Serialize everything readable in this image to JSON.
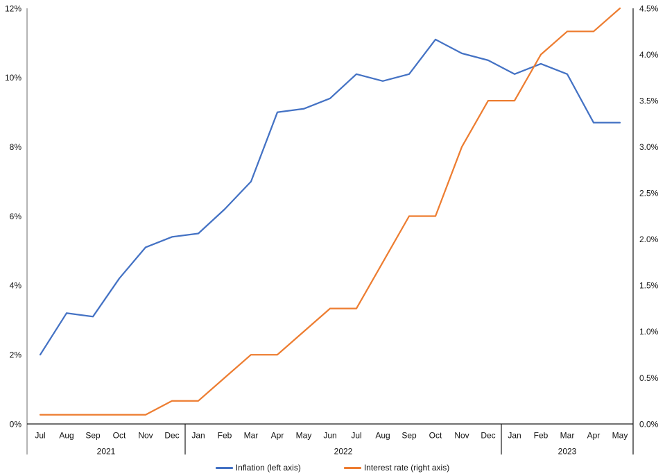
{
  "colors": {
    "inflation_line": "#4472C4",
    "interest_line": "#ED7D31",
    "left_axis_line": "#8C8C8C",
    "right_axis_line": "#262626",
    "category_axis_line": "#1A1A1A",
    "label_text": "#111111",
    "background": "#FFFFFF"
  },
  "chart_data": {
    "type": "line",
    "x": [
      "Jul",
      "Aug",
      "Sep",
      "Oct",
      "Nov",
      "Dec",
      "Jan",
      "Feb",
      "Mar",
      "Apr",
      "May",
      "Jun",
      "Jul",
      "Aug",
      "Sep",
      "Oct",
      "Nov",
      "Dec",
      "Jan",
      "Feb",
      "Mar",
      "Apr",
      "May"
    ],
    "x_groups": [
      {
        "label": "2021",
        "count": 6
      },
      {
        "label": "2022",
        "count": 12
      },
      {
        "label": "2023",
        "count": 5
      }
    ],
    "series": [
      {
        "name": "Inflation (left axis)",
        "axis": "left",
        "color": "#4472C4",
        "values": [
          2.0,
          3.2,
          3.1,
          4.2,
          5.1,
          5.4,
          5.5,
          6.2,
          7.0,
          9.0,
          9.1,
          9.4,
          10.1,
          9.9,
          10.1,
          11.1,
          10.7,
          10.5,
          10.1,
          10.4,
          10.1,
          8.7,
          8.7
        ]
      },
      {
        "name": "Interest rate (right axis)",
        "axis": "right",
        "color": "#ED7D31",
        "values": [
          0.1,
          0.1,
          0.1,
          0.1,
          0.1,
          0.25,
          0.25,
          0.5,
          0.75,
          0.75,
          1.0,
          1.25,
          1.25,
          1.75,
          2.25,
          2.25,
          3.0,
          3.5,
          3.5,
          4.0,
          4.25,
          4.25,
          4.5
        ]
      }
    ],
    "left_axis": {
      "min": 0,
      "max": 12,
      "step": 2,
      "tick_labels": [
        "0%",
        "2%",
        "4%",
        "6%",
        "8%",
        "10%",
        "12%"
      ]
    },
    "right_axis": {
      "min": 0,
      "max": 4.5,
      "step": 0.5,
      "tick_labels": [
        "0.0%",
        "0.5%",
        "1.0%",
        "1.5%",
        "2.0%",
        "2.5%",
        "3.0%",
        "3.5%",
        "4.0%",
        "4.5%"
      ]
    },
    "legend_position": "bottom",
    "grid": "off"
  }
}
